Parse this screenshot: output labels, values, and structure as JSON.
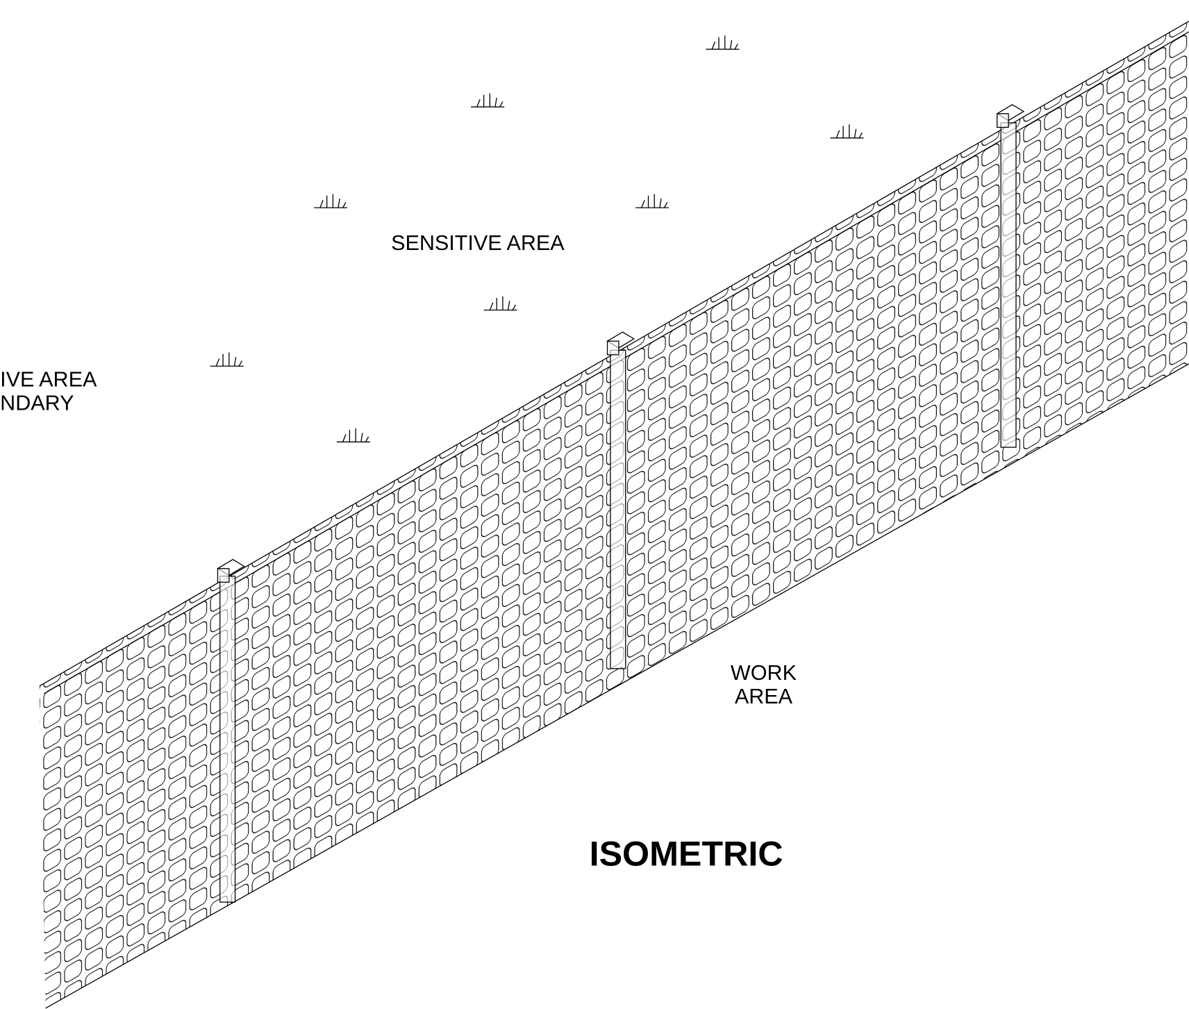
{
  "labels": {
    "sensitive_area": "SENSITIVE AREA",
    "boundary": [
      "IVE AREA",
      "NDARY"
    ],
    "work_area": [
      "WORK",
      "AREA"
    ],
    "title": "ISOMETRIC"
  }
}
